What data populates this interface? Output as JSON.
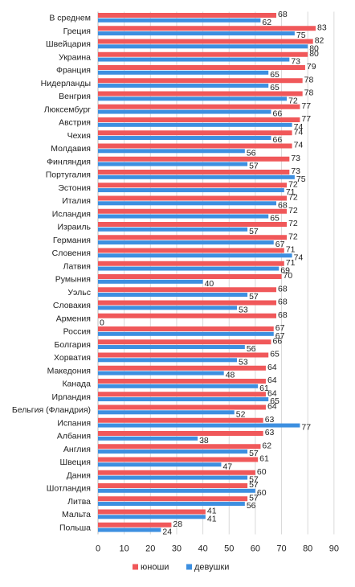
{
  "chart_data": {
    "type": "bar",
    "orientation": "horizontal",
    "categories": [
      "В среднем",
      "Греция",
      "Швейцария",
      "Украина",
      "Франция",
      "Нидерланды",
      "Венгрия",
      "Люксембург",
      "Австрия",
      "Чехия",
      "Молдавия",
      "Финляндия",
      "Португалия",
      "Эстония",
      "Италия",
      "Исландия",
      "Израиль",
      "Германия",
      "Словения",
      "Латвия",
      "Румыния",
      "Уэльс",
      "Словакия",
      "Армения",
      "Россия",
      "Болгария",
      "Хорватия",
      "Македония",
      "Канада",
      "Ирландия",
      "Бельгия (Фландрия)",
      "Испания",
      "Албания",
      "Англия",
      "Швеция",
      "Дания",
      "Шотландия",
      "Литва",
      "Мальта",
      "Польша"
    ],
    "series": [
      {
        "name": "юноши",
        "color": "#f0585a",
        "values": [
          68,
          83,
          82,
          80,
          79,
          78,
          78,
          77,
          77,
          74,
          74,
          73,
          73,
          72,
          72,
          72,
          72,
          72,
          71,
          71,
          70,
          68,
          68,
          68,
          67,
          66,
          65,
          64,
          64,
          64,
          64,
          63,
          63,
          62,
          61,
          60,
          57,
          57,
          41,
          28
        ]
      },
      {
        "name": "девушки",
        "color": "#3d8fe0",
        "values": [
          62,
          75,
          80,
          73,
          65,
          65,
          72,
          66,
          74,
          66,
          56,
          57,
          75,
          71,
          68,
          65,
          57,
          67,
          74,
          69,
          40,
          57,
          53,
          0,
          67,
          56,
          53,
          48,
          61,
          65,
          52,
          77,
          38,
          57,
          47,
          57,
          60,
          56,
          41,
          24
        ]
      }
    ],
    "xlim": [
      0,
      90
    ],
    "xticks": [
      0,
      10,
      20,
      30,
      40,
      50,
      60,
      70,
      80,
      90
    ],
    "grid": true,
    "legend": "bottom"
  }
}
